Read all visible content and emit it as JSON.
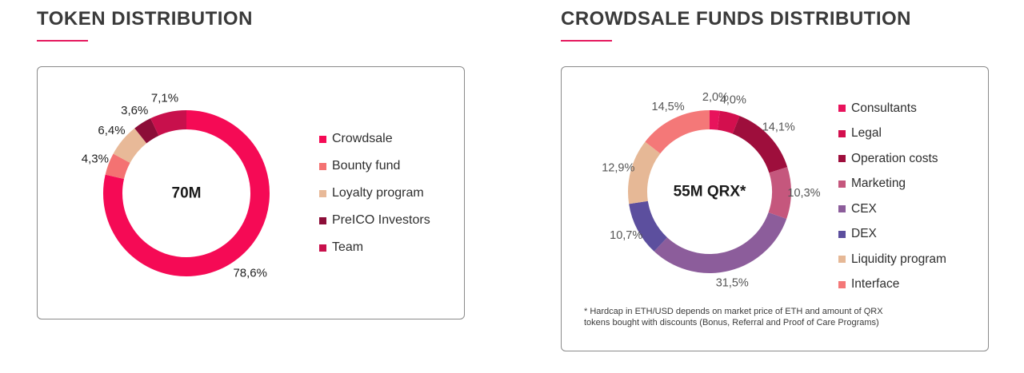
{
  "token_section": {
    "title": "TOKEN DISTRIBUTION"
  },
  "funds_section": {
    "title": "CROWDSALE FUNDS DISTRIBUTION",
    "footnote_lines": [
      "* Hardcap in ETH/USD depends on market price of ETH and amount of QRX",
      "tokens bought with discounts (Bonus, Referral and Proof of Care Programs)"
    ]
  },
  "colors": {
    "accent": "#e5195e",
    "border": "#8a8a8a"
  },
  "chart_data": [
    {
      "type": "pie",
      "donut": true,
      "center_label": "70M",
      "legend_placement": "right",
      "categories": [
        "Crowdsale",
        "Bounty fund",
        "Loyalty program",
        "PreICO Investors",
        "Team"
      ],
      "values": [
        78.6,
        4.3,
        6.4,
        3.6,
        7.1
      ],
      "value_labels": [
        "78,6%",
        "4,3%",
        "6,4%",
        "3,6%",
        "7,1%"
      ],
      "colors": [
        "#f50a55",
        "#f47272",
        "#e8b998",
        "#8c0d38",
        "#c8104c"
      ]
    },
    {
      "type": "pie",
      "donut": true,
      "center_label": "55M QRX*",
      "legend_placement": "right",
      "categories": [
        "Consultants",
        "Legal",
        "Operation costs",
        "Marketing",
        "CEX",
        "DEX",
        "Liquidity program",
        "Interface"
      ],
      "values": [
        2.0,
        4.0,
        14.1,
        10.3,
        31.5,
        10.7,
        12.9,
        14.5
      ],
      "value_labels": [
        "2,0%",
        "4,0%",
        "14,1%",
        "10,3%",
        "31,5%",
        "10,7%",
        "12,9%",
        "14,5%"
      ],
      "colors": [
        "#e8135c",
        "#d30f4e",
        "#9e0e3c",
        "#c5577d",
        "#8c5d9b",
        "#5c4f9e",
        "#e6b896",
        "#f47878"
      ]
    }
  ]
}
